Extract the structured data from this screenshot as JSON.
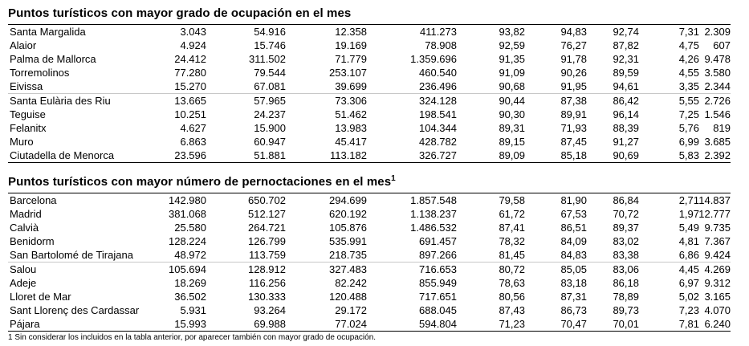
{
  "section1": {
    "title": "Puntos turísticos con mayor grado de ocupación en el mes",
    "rows": [
      [
        "Santa Margalida",
        "3.043",
        "54.916",
        "12.358",
        "411.273",
        "93,82",
        "94,83",
        "92,74",
        "7,31",
        "2.309"
      ],
      [
        "Alaior",
        "4.924",
        "15.746",
        "19.169",
        "78.908",
        "92,59",
        "76,27",
        "87,82",
        "4,75",
        "607"
      ],
      [
        "Palma de Mallorca",
        "24.412",
        "311.502",
        "71.779",
        "1.359.696",
        "91,35",
        "91,78",
        "92,31",
        "4,26",
        "9.478"
      ],
      [
        "Torremolinos",
        "77.280",
        "79.544",
        "253.107",
        "460.540",
        "91,09",
        "90,26",
        "89,59",
        "4,55",
        "3.580"
      ],
      [
        "Eivissa",
        "15.270",
        "67.081",
        "39.699",
        "236.496",
        "90,68",
        "91,95",
        "94,61",
        "3,35",
        "2.344"
      ],
      [
        "Santa Eulària des Riu",
        "13.665",
        "57.965",
        "73.306",
        "324.128",
        "90,44",
        "87,38",
        "86,42",
        "5,55",
        "2.726"
      ],
      [
        "Teguise",
        "10.251",
        "24.237",
        "51.462",
        "198.541",
        "90,30",
        "89,91",
        "96,14",
        "7,25",
        "1.546"
      ],
      [
        "Felanitx",
        "4.627",
        "15.900",
        "13.983",
        "104.344",
        "89,31",
        "71,93",
        "88,39",
        "5,76",
        "819"
      ],
      [
        "Muro",
        "6.863",
        "60.947",
        "45.417",
        "428.782",
        "89,15",
        "87,45",
        "91,27",
        "6,99",
        "3.685"
      ],
      [
        "Ciutadella de Menorca",
        "23.596",
        "51.881",
        "113.182",
        "326.727",
        "89,09",
        "85,18",
        "90,69",
        "5,83",
        "2.392"
      ]
    ]
  },
  "section2": {
    "title": "Puntos turísticos con mayor número de pernoctaciones en el mes",
    "title_sup": "1",
    "rows": [
      [
        "Barcelona",
        "142.980",
        "650.702",
        "294.699",
        "1.857.548",
        "79,58",
        "81,90",
        "86,84",
        "2,71",
        "14.837"
      ],
      [
        "Madrid",
        "381.068",
        "512.127",
        "620.192",
        "1.138.237",
        "61,72",
        "67,53",
        "70,72",
        "1,97",
        "12.777"
      ],
      [
        "Calvià",
        "25.580",
        "264.721",
        "105.876",
        "1.486.532",
        "87,41",
        "86,51",
        "89,37",
        "5,49",
        "9.735"
      ],
      [
        "Benidorm",
        "128.224",
        "126.799",
        "535.991",
        "691.457",
        "78,32",
        "84,09",
        "83,02",
        "4,81",
        "7.367"
      ],
      [
        "San Bartolomé de Tirajana",
        "48.972",
        "113.759",
        "218.735",
        "897.266",
        "81,45",
        "84,83",
        "83,38",
        "6,86",
        "9.424"
      ],
      [
        "Salou",
        "105.694",
        "128.912",
        "327.483",
        "716.653",
        "80,72",
        "85,05",
        "83,06",
        "4,45",
        "4.269"
      ],
      [
        "Adeje",
        "18.269",
        "116.256",
        "82.242",
        "855.949",
        "78,63",
        "83,18",
        "86,18",
        "6,97",
        "9.312"
      ],
      [
        "Lloret de Mar",
        "36.502",
        "130.333",
        "120.488",
        "717.651",
        "80,56",
        "87,31",
        "78,89",
        "5,02",
        "3.165"
      ],
      [
        "Sant Llorenç des Cardassar",
        "5.931",
        "93.264",
        "29.172",
        "688.045",
        "87,43",
        "86,73",
        "89,73",
        "7,23",
        "4.070"
      ],
      [
        "Pájara",
        "15.993",
        "69.988",
        "77.024",
        "594.804",
        "71,23",
        "70,47",
        "70,01",
        "7,81",
        "6.240"
      ]
    ]
  },
  "footnote": "1 Sin considerar los incluidos en la tabla anterior, por aparecer también con mayor grado de ocupación."
}
